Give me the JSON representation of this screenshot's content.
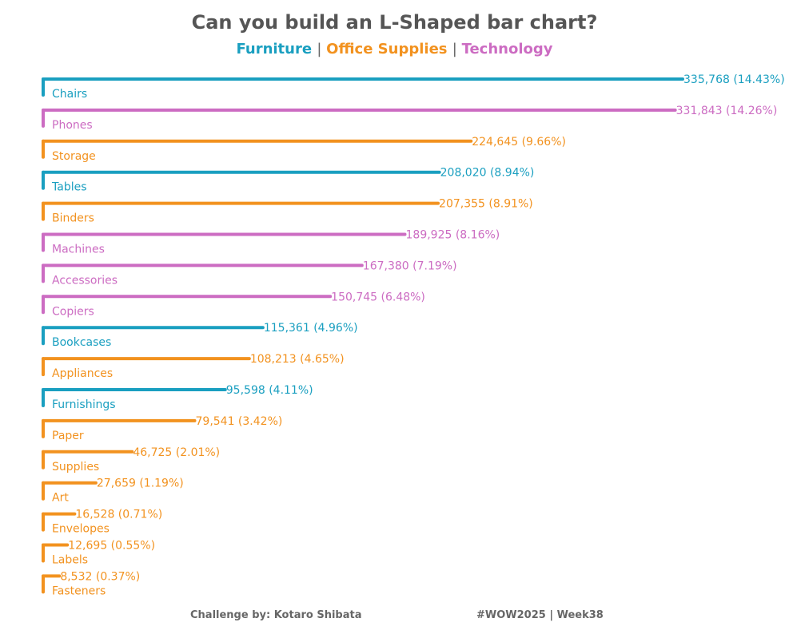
{
  "chart_data": {
    "type": "bar",
    "title": "Can you build an L-Shaped bar chart?",
    "legend": [
      {
        "name": "Furniture",
        "color": "#1a9fc0"
      },
      {
        "name": "Office Supplies",
        "color": "#f2921f"
      },
      {
        "name": "Technology",
        "color": "#cc6cc2"
      }
    ],
    "categories": [
      "Chairs",
      "Phones",
      "Storage",
      "Tables",
      "Binders",
      "Machines",
      "Accessories",
      "Copiers",
      "Bookcases",
      "Appliances",
      "Furnishings",
      "Paper",
      "Supplies",
      "Art",
      "Envelopes",
      "Labels",
      "Fasteners"
    ],
    "values": [
      335768,
      331843,
      224645,
      208020,
      207355,
      189925,
      167380,
      150745,
      115361,
      108213,
      95598,
      79541,
      46725,
      27659,
      16528,
      12695,
      8532
    ],
    "value_labels": [
      "335,768 (14.43%)",
      "331,843 (14.26%)",
      "224,645 (9.66%)",
      "208,020 (8.94%)",
      "207,355 (8.91%)",
      "189,925 (8.16%)",
      "167,380 (7.19%)",
      "150,745 (6.48%)",
      "115,361 (4.96%)",
      "108,213 (4.65%)",
      "95,598 (4.11%)",
      "79,541 (3.42%)",
      "46,725 (2.01%)",
      "27,659 (1.19%)",
      "16,528 (0.71%)",
      "12,695 (0.55%)",
      "8,532 (0.37%)"
    ],
    "groups": [
      "Furniture",
      "Technology",
      "Office Supplies",
      "Furniture",
      "Office Supplies",
      "Technology",
      "Technology",
      "Technology",
      "Furniture",
      "Office Supplies",
      "Furniture",
      "Office Supplies",
      "Office Supplies",
      "Office Supplies",
      "Office Supplies",
      "Office Supplies",
      "Office Supplies"
    ],
    "xlim": [
      0,
      335768
    ],
    "grid": false
  },
  "footer": {
    "credit": "Challenge by: Kotaro Shibata",
    "tag": "#WOW2025 | Week38"
  }
}
